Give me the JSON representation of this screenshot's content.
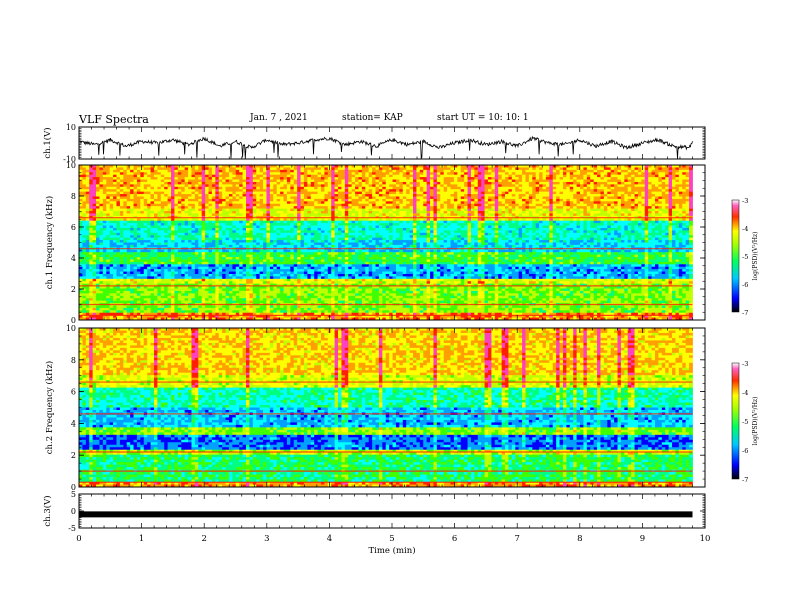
{
  "header": {
    "title": "VLF Spectra",
    "date": "Jan. 7 , 2021",
    "station": "station= KAP",
    "start": "start UT =  10: 10: 1"
  },
  "chart_data": [
    {
      "type": "line",
      "panel": "ch1-waveform",
      "ylabel": "ch.1(V)",
      "ylim": [
        -10,
        10
      ],
      "yticks": [
        "10",
        "-10"
      ],
      "xlim": [
        0,
        10
      ],
      "series_color": "#000000",
      "description_values_sampled": {
        "x": [
          0,
          0.25,
          0.5,
          0.75,
          1,
          1.25,
          1.5,
          1.75,
          2,
          2.25,
          2.5,
          2.75,
          3,
          3.25,
          3.5,
          3.75,
          4,
          4.25,
          4.5,
          4.75,
          5,
          5.25,
          5.5,
          5.75,
          6,
          6.25,
          6.5,
          6.75,
          7,
          7.25,
          7.5,
          7.75,
          8,
          8.25,
          8.5,
          8.75,
          9,
          9.25,
          9.5,
          9.75,
          9.8
        ],
        "y": [
          1,
          -1,
          2,
          -2,
          1,
          0,
          2,
          -1,
          3,
          -2,
          1,
          -3,
          2,
          -1,
          0,
          2,
          3,
          -1,
          1,
          -2,
          2,
          -1,
          1,
          -3,
          0,
          2,
          -1,
          1,
          -2,
          3,
          0,
          -1,
          2,
          -2,
          1,
          -3,
          0,
          2,
          -2,
          -3,
          1
        ]
      }
    },
    {
      "type": "heatmap",
      "panel": "ch1-spectrogram",
      "ylabel": "ch.1 Frequency (kHz)",
      "ylim": [
        0,
        10
      ],
      "yticks": [
        "0",
        "2",
        "4",
        "6",
        "8",
        "10"
      ],
      "xlim": [
        0,
        9.8
      ],
      "colorbar": {
        "label": "log(PSD)(V²/Hz)",
        "range": [
          -7,
          -3
        ],
        "ticks": [
          "-3",
          "-4",
          "-5",
          "-6",
          "-7"
        ]
      }
    },
    {
      "type": "heatmap",
      "panel": "ch2-spectrogram",
      "ylabel": "ch.2 Frequency (kHz)",
      "ylim": [
        0,
        10
      ],
      "yticks": [
        "0",
        "2",
        "4",
        "6",
        "8",
        "10"
      ],
      "xlim": [
        0,
        9.8
      ],
      "colorbar": {
        "label": "log(PSD)(V²/Hz)",
        "range": [
          -7,
          -3
        ],
        "ticks": [
          "-3",
          "-4",
          "-5",
          "-6",
          "-7"
        ]
      }
    },
    {
      "type": "line",
      "panel": "ch3-waveform",
      "ylabel": "ch.3(V)",
      "ylim": [
        -5,
        5
      ],
      "yticks": [
        "5",
        "0",
        "-5"
      ],
      "xlim": [
        0,
        10
      ],
      "series_color": "#000000",
      "series": [
        {
          "x": [
            0,
            9.8
          ],
          "y": [
            -1,
            -1
          ]
        }
      ]
    }
  ],
  "xaxis": {
    "label": "Time (min)",
    "ticks": [
      "0",
      "1",
      "2",
      "3",
      "4",
      "5",
      "6",
      "7",
      "8",
      "9",
      "10"
    ],
    "range": [
      0,
      10
    ]
  },
  "colors": {
    "palette": [
      "#000080",
      "#0000ff",
      "#00a0ff",
      "#00ffff",
      "#00ff80",
      "#40ff00",
      "#c0ff00",
      "#ffff00",
      "#ffa000",
      "#ff2000",
      "#ff40c0",
      "#ffffff"
    ]
  }
}
